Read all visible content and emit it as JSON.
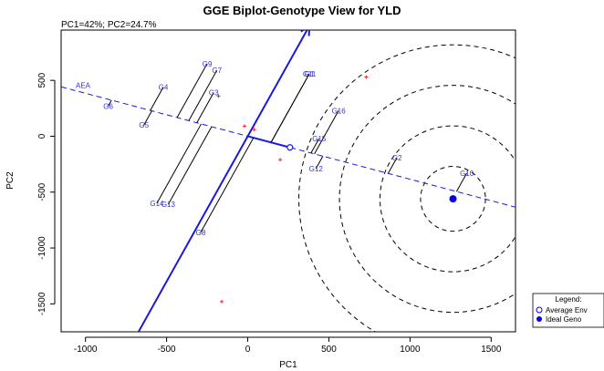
{
  "chart_data": {
    "type": "scatter",
    "title": "GGE Biplot-Genotype View for YLD",
    "subtitle": "PC1=42%; PC2=24.7%",
    "xlabel": "PC1",
    "ylabel": "PC2",
    "xlim": [
      -1150,
      1650
    ],
    "ylim": [
      -1750,
      950
    ],
    "xticks": [
      -1000,
      -500,
      0,
      500,
      1000,
      1500
    ],
    "yticks": [
      -1500,
      -1000,
      -500,
      0,
      500
    ],
    "grid": false,
    "legend_position": "bottom-right",
    "colors": {
      "genotype_label": "#3333cc",
      "aea": "#1a1adc",
      "env_marker": "#ff2020",
      "ideal": "#0000ee"
    },
    "genotypes": [
      {
        "name": "G1",
        "x": 380,
        "y": 560
      },
      {
        "name": "G2",
        "x": 920,
        "y": -190
      },
      {
        "name": "G3",
        "x": -210,
        "y": 390
      },
      {
        "name": "G4",
        "x": -520,
        "y": 440
      },
      {
        "name": "G5",
        "x": -640,
        "y": 100
      },
      {
        "name": "G6",
        "x": -860,
        "y": 270
      },
      {
        "name": "G7",
        "x": -190,
        "y": 590
      },
      {
        "name": "G8",
        "x": -290,
        "y": -860
      },
      {
        "name": "G9",
        "x": -250,
        "y": 650
      },
      {
        "name": "G10",
        "x": 1350,
        "y": -330
      },
      {
        "name": "G11",
        "x": 380,
        "y": 560
      },
      {
        "name": "G12",
        "x": 420,
        "y": -290
      },
      {
        "name": "G13",
        "x": -490,
        "y": -610
      },
      {
        "name": "G14",
        "x": -560,
        "y": -600
      },
      {
        "name": "G15",
        "x": 440,
        "y": -20
      },
      {
        "name": "G16",
        "x": 560,
        "y": 230
      }
    ],
    "environments": [
      {
        "x": -180,
        "y": 360
      },
      {
        "x": -20,
        "y": 90
      },
      {
        "x": 40,
        "y": 60
      },
      {
        "x": 200,
        "y": -210
      },
      {
        "x": 730,
        "y": 530
      },
      {
        "x": -160,
        "y": -1480
      }
    ],
    "aea_label": "AEA",
    "average_env": {
      "x": 260,
      "y": -100
    },
    "ideal_genotype": {
      "x": 1265,
      "y": -560
    },
    "concentric_radii": [
      200,
      450,
      700,
      950
    ],
    "legend": {
      "title": "Legend:",
      "entries": [
        "Average Env",
        "Ideal Geno"
      ]
    }
  }
}
